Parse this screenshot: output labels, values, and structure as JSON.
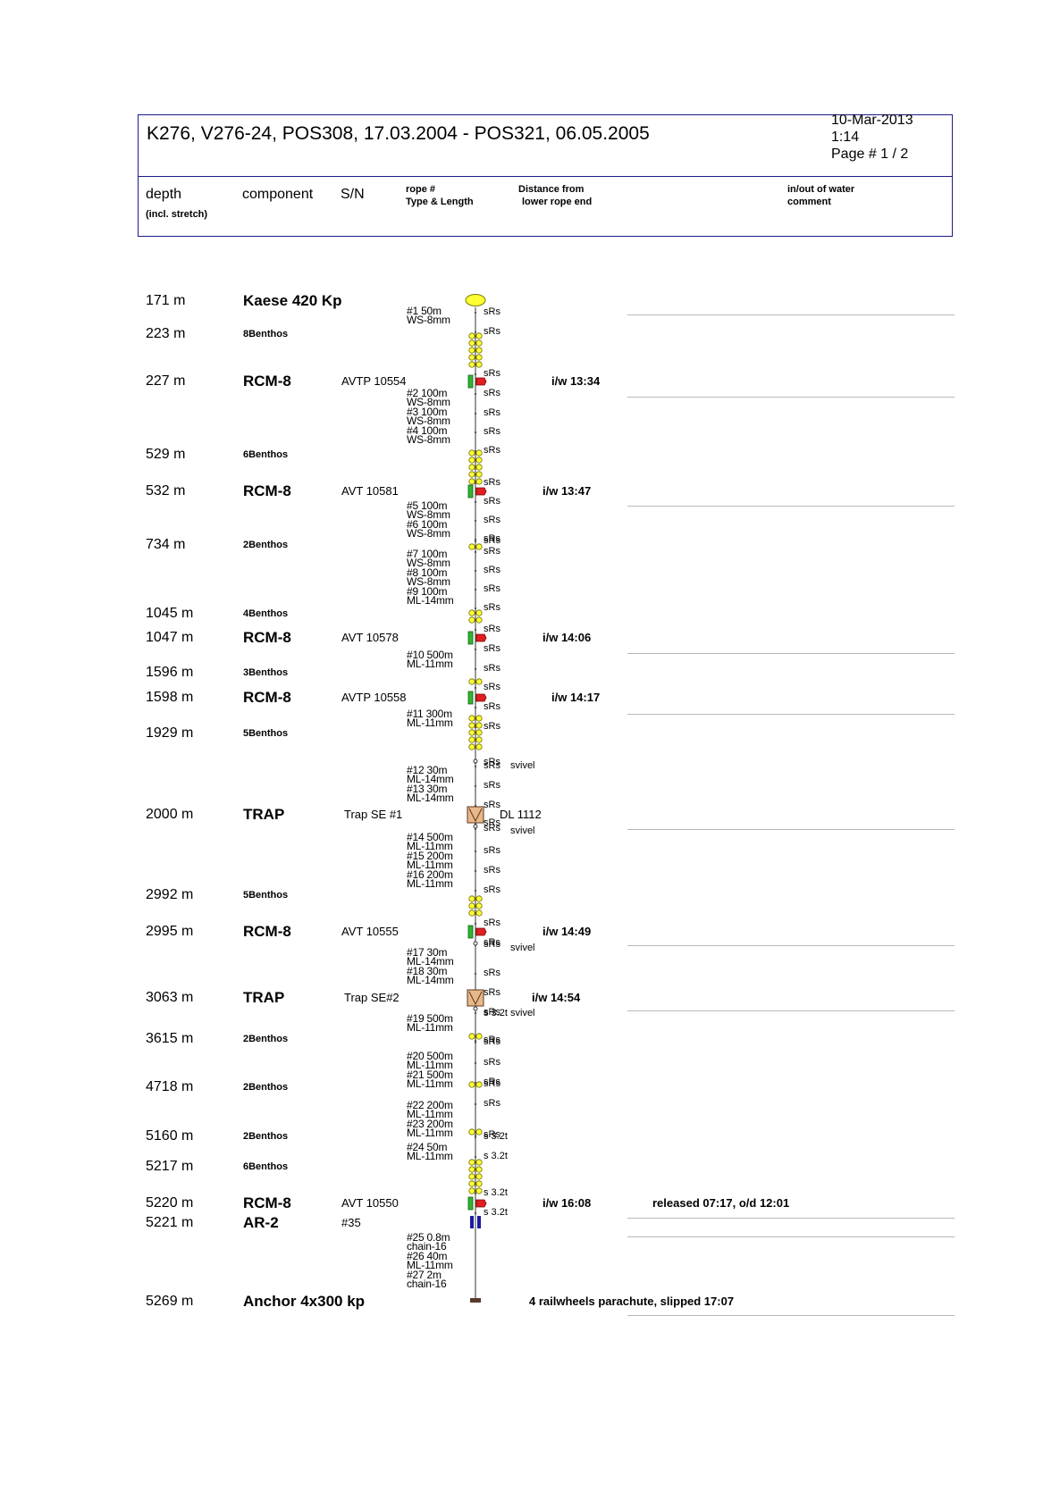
{
  "header": {
    "title": "K276, V276-24, POS308, 17.03.2004 - POS321, 06.05.2005",
    "date": "10-Mar-2013",
    "time": "1:14",
    "page": "Page # 1 / 2"
  },
  "columns": {
    "depth": "depth",
    "depth_note": "(incl. stretch)",
    "component": "component",
    "sn": "S/N",
    "rope_1": "rope #",
    "rope_2": "Type & Length",
    "dist_1": "Distance from",
    "dist_2": "lower rope end",
    "inout_1": "in/out of water",
    "inout_2": "comment"
  },
  "items": [
    {
      "depth": "171 m",
      "component": "Kaese 420 Kp",
      "sn": "",
      "iw": "",
      "comment": ""
    },
    {
      "depth": "223 m",
      "component": "8Benthos",
      "sn": "",
      "iw": "",
      "comment": ""
    },
    {
      "depth": "227 m",
      "component": "RCM-8",
      "sn": "AVTP 10554",
      "iw": "i/w 13:34",
      "comment": ""
    },
    {
      "depth": "529 m",
      "component": "6Benthos",
      "sn": "",
      "iw": "",
      "comment": ""
    },
    {
      "depth": "532 m",
      "component": "RCM-8",
      "sn": "AVT 10581",
      "iw": "i/w 13:47",
      "comment": ""
    },
    {
      "depth": "734 m",
      "component": "2Benthos",
      "sn": "",
      "iw": "",
      "comment": ""
    },
    {
      "depth": "1045 m",
      "component": "4Benthos",
      "sn": "",
      "iw": "",
      "comment": ""
    },
    {
      "depth": "1047 m",
      "component": "RCM-8",
      "sn": "AVT 10578",
      "iw": "i/w 14:06",
      "comment": ""
    },
    {
      "depth": "1596 m",
      "component": "3Benthos",
      "sn": "",
      "iw": "",
      "comment": ""
    },
    {
      "depth": "1598 m",
      "component": "RCM-8",
      "sn": "AVTP 10558",
      "iw": "i/w 14:17",
      "comment": ""
    },
    {
      "depth": "1929 m",
      "component": "5Benthos",
      "sn": "",
      "iw": "",
      "comment": ""
    },
    {
      "depth": "2000 m",
      "component": "TRAP",
      "sn": "Trap SE #1",
      "iw": "DL 1112",
      "comment": ""
    },
    {
      "depth": "2992 m",
      "component": "5Benthos",
      "sn": "",
      "iw": "",
      "comment": ""
    },
    {
      "depth": "2995 m",
      "component": "RCM-8",
      "sn": "AVT 10555",
      "iw": "i/w 14:49",
      "comment": ""
    },
    {
      "depth": "3063 m",
      "component": "TRAP",
      "sn": "Trap SE#2",
      "iw": "i/w 14:54",
      "comment": ""
    },
    {
      "depth": "3615 m",
      "component": "2Benthos",
      "sn": "",
      "iw": "",
      "comment": ""
    },
    {
      "depth": "4718 m",
      "component": "2Benthos",
      "sn": "",
      "iw": "",
      "comment": ""
    },
    {
      "depth": "5160 m",
      "component": "2Benthos",
      "sn": "",
      "iw": "",
      "comment": ""
    },
    {
      "depth": "5217 m",
      "component": "6Benthos",
      "sn": "",
      "iw": "",
      "comment": ""
    },
    {
      "depth": "5220 m",
      "component": "RCM-8",
      "sn": "AVT 10550",
      "iw": "i/w 16:08",
      "comment": "released 07:17, o/d 12:01"
    },
    {
      "depth": "5221 m",
      "component": "AR-2",
      "sn": "#35",
      "iw": "",
      "comment": ""
    },
    {
      "depth": "5269 m",
      "component": "Anchor 4x300 kp",
      "sn": "",
      "iw": "4 railwheels parachute, slipped 17:07",
      "comment": ""
    }
  ],
  "ropes": [
    {
      "n": "#1",
      "len": "50m",
      "type": "WS-8mm"
    },
    {
      "n": "#2",
      "len": "100m",
      "type": "WS-8mm"
    },
    {
      "n": "#3",
      "len": "100m",
      "type": "WS-8mm"
    },
    {
      "n": "#4",
      "len": "100m",
      "type": "WS-8mm"
    },
    {
      "n": "#5",
      "len": "100m",
      "type": "WS-8mm"
    },
    {
      "n": "#6",
      "len": "100m",
      "type": "WS-8mm"
    },
    {
      "n": "#7",
      "len": "100m",
      "type": "WS-8mm"
    },
    {
      "n": "#8",
      "len": "100m",
      "type": "WS-8mm"
    },
    {
      "n": "#9",
      "len": "100m",
      "type": "ML-14mm"
    },
    {
      "n": "#10",
      "len": "500m",
      "type": "ML-11mm"
    },
    {
      "n": "#11",
      "len": "300m",
      "type": "ML-11mm"
    },
    {
      "n": "#12",
      "len": "30m",
      "type": "ML-14mm"
    },
    {
      "n": "#13",
      "len": "30m",
      "type": "ML-14mm"
    },
    {
      "n": "#14",
      "len": "500m",
      "type": "ML-11mm"
    },
    {
      "n": "#15",
      "len": "200m",
      "type": "ML-11mm"
    },
    {
      "n": "#16",
      "len": "200m",
      "type": "ML-11mm"
    },
    {
      "n": "#17",
      "len": "30m",
      "type": "ML-14mm"
    },
    {
      "n": "#18",
      "len": "30m",
      "type": "ML-14mm"
    },
    {
      "n": "#19",
      "len": "500m",
      "type": "ML-11mm"
    },
    {
      "n": "#20",
      "len": "500m",
      "type": "ML-11mm"
    },
    {
      "n": "#21",
      "len": "500m",
      "type": "ML-11mm"
    },
    {
      "n": "#22",
      "len": "200m",
      "type": "ML-11mm"
    },
    {
      "n": "#23",
      "len": "200m",
      "type": "ML-11mm"
    },
    {
      "n": "#24",
      "len": "50m",
      "type": "ML-11mm"
    },
    {
      "n": "#25",
      "len": "0.8m",
      "type": "chain-16"
    },
    {
      "n": "#26",
      "len": "40m",
      "type": "ML-11mm"
    },
    {
      "n": "#27",
      "len": "2m",
      "type": "chain-16"
    }
  ],
  "labels": {
    "srs": "sRs",
    "s32": "s 3.2t",
    "svivel": "svivel"
  },
  "colors": {
    "frame": "#1a1a8c",
    "float": "#ffff33",
    "rcm_green": "#2eb82e",
    "rcm_red": "#e02020",
    "trap": "#e8b88a",
    "release": "#1a1aa0"
  }
}
